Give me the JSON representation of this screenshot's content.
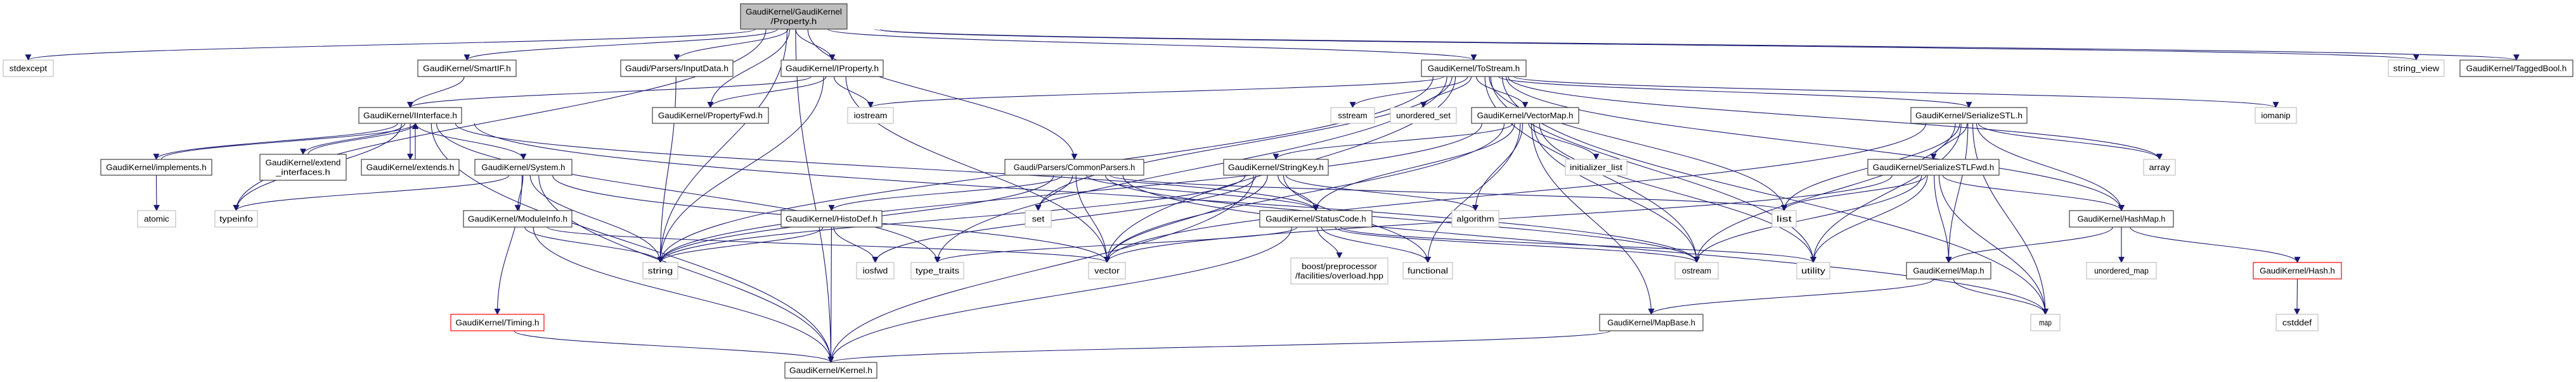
{
  "colors": {
    "edge": "#191970",
    "root_fill": "#bfbfbf",
    "system_border": "#c0c0c0",
    "missing_border": "#ff0000",
    "node_border": "#404040"
  },
  "nodes": {
    "property": {
      "label": [
        "GaudiKernel/GaudiKernel",
        "/Property.h"
      ],
      "kind": "root"
    },
    "stdexcept": {
      "label": [
        "stdexcept"
      ],
      "kind": "sys"
    },
    "smartif": {
      "label": [
        "GaudiKernel/SmartIF.h"
      ],
      "kind": "doc"
    },
    "inputdata": {
      "label": [
        "Gaudi/Parsers/InputData.h"
      ],
      "kind": "doc"
    },
    "iproperty": {
      "label": [
        "GaudiKernel/IProperty.h"
      ],
      "kind": "doc"
    },
    "tostream": {
      "label": [
        "GaudiKernel/ToStream.h"
      ],
      "kind": "doc"
    },
    "string_view": {
      "label": [
        "string_view"
      ],
      "kind": "sys"
    },
    "taggedbool": {
      "label": [
        "GaudiKernel/TaggedBool.h"
      ],
      "kind": "doc"
    },
    "iinterface": {
      "label": [
        "GaudiKernel/IInterface.h"
      ],
      "kind": "doc"
    },
    "propertyfwd": {
      "label": [
        "GaudiKernel/PropertyFwd.h"
      ],
      "kind": "doc"
    },
    "iostream": {
      "label": [
        "iostream"
      ],
      "kind": "sys"
    },
    "sstream": {
      "label": [
        "sstream"
      ],
      "kind": "sys"
    },
    "unordered_set": {
      "label": [
        "unordered_set"
      ],
      "kind": "sys"
    },
    "vectormap": {
      "label": [
        "GaudiKernel/VectorMap.h"
      ],
      "kind": "doc"
    },
    "serializestl": {
      "label": [
        "GaudiKernel/SerializeSTL.h"
      ],
      "kind": "doc"
    },
    "iomanip": {
      "label": [
        "iomanip"
      ],
      "kind": "sys"
    },
    "implements": {
      "label": [
        "GaudiKernel/implements.h"
      ],
      "kind": "doc"
    },
    "extend_interfaces": {
      "label": [
        "GaudiKernel/extend",
        "_interfaces.h"
      ],
      "kind": "doc"
    },
    "extends": {
      "label": [
        "GaudiKernel/extends.h"
      ],
      "kind": "doc"
    },
    "system": {
      "label": [
        "GaudiKernel/System.h"
      ],
      "kind": "doc"
    },
    "commonparsers": {
      "label": [
        "Gaudi/Parsers/CommonParsers.h"
      ],
      "kind": "doc"
    },
    "stringkey": {
      "label": [
        "GaudiKernel/StringKey.h"
      ],
      "kind": "doc"
    },
    "initializer_list": {
      "label": [
        "initializer_list"
      ],
      "kind": "sys"
    },
    "serializestlfwd": {
      "label": [
        "GaudiKernel/SerializeSTLFwd.h"
      ],
      "kind": "doc"
    },
    "array": {
      "label": [
        "array"
      ],
      "kind": "sys"
    },
    "atomic": {
      "label": [
        "atomic"
      ],
      "kind": "sys"
    },
    "typeinfo": {
      "label": [
        "typeinfo"
      ],
      "kind": "sys"
    },
    "moduleinfo": {
      "label": [
        "GaudiKernel/ModuleInfo.h"
      ],
      "kind": "doc"
    },
    "histodef": {
      "label": [
        "GaudiKernel/HistoDef.h"
      ],
      "kind": "doc"
    },
    "set": {
      "label": [
        "set"
      ],
      "kind": "sys"
    },
    "statuscode": {
      "label": [
        "GaudiKernel/StatusCode.h"
      ],
      "kind": "doc"
    },
    "algorithm": {
      "label": [
        "algorithm"
      ],
      "kind": "sys"
    },
    "list": {
      "label": [
        "list"
      ],
      "kind": "sys"
    },
    "hashmap": {
      "label": [
        "GaudiKernel/HashMap.h"
      ],
      "kind": "doc"
    },
    "string": {
      "label": [
        "string"
      ],
      "kind": "sys"
    },
    "iosfwd": {
      "label": [
        "iosfwd"
      ],
      "kind": "sys"
    },
    "type_traits": {
      "label": [
        "type_traits"
      ],
      "kind": "sys"
    },
    "vector": {
      "label": [
        "vector"
      ],
      "kind": "sys"
    },
    "boost_overload": {
      "label": [
        "boost/preprocessor",
        "/facilities/overload.hpp"
      ],
      "kind": "sys"
    },
    "functional": {
      "label": [
        "functional"
      ],
      "kind": "sys"
    },
    "ostream": {
      "label": [
        "ostream"
      ],
      "kind": "sys"
    },
    "utility": {
      "label": [
        "utility"
      ],
      "kind": "sys"
    },
    "map_h": {
      "label": [
        "GaudiKernel/Map.h"
      ],
      "kind": "doc"
    },
    "unordered_map": {
      "label": [
        "unordered_map"
      ],
      "kind": "sys"
    },
    "hash": {
      "label": [
        "GaudiKernel/Hash.h"
      ],
      "kind": "red"
    },
    "timing": {
      "label": [
        "GaudiKernel/Timing.h"
      ],
      "kind": "red"
    },
    "mapbase": {
      "label": [
        "GaudiKernel/MapBase.h"
      ],
      "kind": "doc"
    },
    "map": {
      "label": [
        "map"
      ],
      "kind": "sys"
    },
    "cstddef": {
      "label": [
        "cstddef"
      ],
      "kind": "sys"
    },
    "kernel": {
      "label": [
        "GaudiKernel/Kernel.h"
      ],
      "kind": "doc"
    }
  },
  "edges": [
    [
      "property",
      "stdexcept"
    ],
    [
      "property",
      "smartif"
    ],
    [
      "property",
      "inputdata"
    ],
    [
      "property",
      "iproperty"
    ],
    [
      "property",
      "propertyfwd"
    ],
    [
      "property",
      "commonparsers"
    ],
    [
      "property",
      "tostream"
    ],
    [
      "property",
      "string_view"
    ],
    [
      "property",
      "taggedbool"
    ],
    [
      "property",
      "string"
    ],
    [
      "property",
      "typeinfo"
    ],
    [
      "property",
      "kernel"
    ],
    [
      "smartif",
      "iinterface"
    ],
    [
      "inputdata",
      "string"
    ],
    [
      "iproperty",
      "iinterface"
    ],
    [
      "iproperty",
      "propertyfwd"
    ],
    [
      "iproperty",
      "iostream"
    ],
    [
      "iproperty",
      "string"
    ],
    [
      "iproperty",
      "vector"
    ],
    [
      "iinterface",
      "implements"
    ],
    [
      "iinterface",
      "extend_interfaces"
    ],
    [
      "iinterface",
      "extends"
    ],
    [
      "iinterface",
      "system"
    ],
    [
      "iinterface",
      "typeinfo"
    ],
    [
      "iinterface",
      "kernel"
    ],
    [
      "iinterface",
      "statuscode"
    ],
    [
      "iinterface",
      "ostream"
    ],
    [
      "iinterface",
      "type_traits"
    ],
    [
      "implements",
      "iinterface"
    ],
    [
      "implements",
      "atomic"
    ],
    [
      "extend_interfaces",
      "iinterface"
    ],
    [
      "extends",
      "iinterface"
    ],
    [
      "system",
      "typeinfo"
    ],
    [
      "system",
      "moduleinfo"
    ],
    [
      "system",
      "timing"
    ],
    [
      "system",
      "string"
    ],
    [
      "system",
      "kernel"
    ],
    [
      "system",
      "vector"
    ],
    [
      "moduleinfo",
      "string"
    ],
    [
      "moduleinfo",
      "kernel"
    ],
    [
      "moduleinfo",
      "vector"
    ],
    [
      "timing",
      "kernel"
    ],
    [
      "commonparsers",
      "histodef"
    ],
    [
      "commonparsers",
      "set"
    ],
    [
      "commonparsers",
      "vector"
    ],
    [
      "commonparsers",
      "string"
    ],
    [
      "commonparsers",
      "list"
    ],
    [
      "commonparsers",
      "map"
    ],
    [
      "commonparsers",
      "statuscode"
    ],
    [
      "commonparsers",
      "ostream"
    ],
    [
      "histodef",
      "string"
    ],
    [
      "histodef",
      "iosfwd"
    ],
    [
      "histodef",
      "kernel"
    ],
    [
      "tostream",
      "sstream"
    ],
    [
      "tostream",
      "unordered_set"
    ],
    [
      "tostream",
      "vectormap"
    ],
    [
      "tostream",
      "iostream"
    ],
    [
      "tostream",
      "string"
    ],
    [
      "tostream",
      "set"
    ],
    [
      "tostream",
      "type_traits"
    ],
    [
      "tostream",
      "vector"
    ],
    [
      "tostream",
      "list"
    ],
    [
      "tostream",
      "serializestl"
    ],
    [
      "tostream",
      "array"
    ],
    [
      "tostream",
      "iomanip"
    ],
    [
      "tostream",
      "map"
    ],
    [
      "tostream",
      "ostream"
    ],
    [
      "tostream",
      "utility"
    ],
    [
      "tostream",
      "hashmap"
    ],
    [
      "vectormap",
      "stringkey"
    ],
    [
      "vectormap",
      "statuscode"
    ],
    [
      "vectormap",
      "algorithm"
    ],
    [
      "vectormap",
      "functional"
    ],
    [
      "vectormap",
      "initializer_list"
    ],
    [
      "vectormap",
      "mapbase"
    ],
    [
      "vectormap",
      "ostream"
    ],
    [
      "vectormap",
      "utility"
    ],
    [
      "vectormap",
      "vector"
    ],
    [
      "vectormap",
      "string"
    ],
    [
      "stringkey",
      "statuscode"
    ],
    [
      "stringkey",
      "string"
    ],
    [
      "stringkey",
      "vector"
    ],
    [
      "stringkey",
      "functional"
    ],
    [
      "stringkey",
      "algorithm"
    ],
    [
      "stringkey",
      "iosfwd"
    ],
    [
      "stringkey",
      "kernel"
    ],
    [
      "statuscode",
      "boost_overload"
    ],
    [
      "statuscode",
      "functional"
    ],
    [
      "statuscode",
      "ostream"
    ],
    [
      "statuscode",
      "utility"
    ],
    [
      "statuscode",
      "kernel"
    ],
    [
      "statuscode",
      "type_traits"
    ],
    [
      "mapbase",
      "kernel"
    ],
    [
      "serializestl",
      "serializestlfwd"
    ],
    [
      "serializestl",
      "array"
    ],
    [
      "serializestl",
      "list"
    ],
    [
      "serializestl",
      "map"
    ],
    [
      "serializestl",
      "map_h"
    ],
    [
      "serializestl",
      "hashmap"
    ],
    [
      "serializestl",
      "ostream"
    ],
    [
      "serializestl",
      "utility"
    ],
    [
      "serializestl",
      "vector"
    ],
    [
      "serializestlfwd",
      "hashmap"
    ],
    [
      "serializestlfwd",
      "map_h"
    ],
    [
      "serializestlfwd",
      "list"
    ],
    [
      "serializestlfwd",
      "map"
    ],
    [
      "serializestlfwd",
      "utility"
    ],
    [
      "serializestlfwd",
      "ostream"
    ],
    [
      "serializestlfwd",
      "vector"
    ],
    [
      "hashmap",
      "map_h"
    ],
    [
      "hashmap",
      "unordered_map"
    ],
    [
      "hashmap",
      "hash"
    ],
    [
      "map_h",
      "map"
    ],
    [
      "map_h",
      "mapbase"
    ],
    [
      "hash",
      "cstddef"
    ]
  ]
}
